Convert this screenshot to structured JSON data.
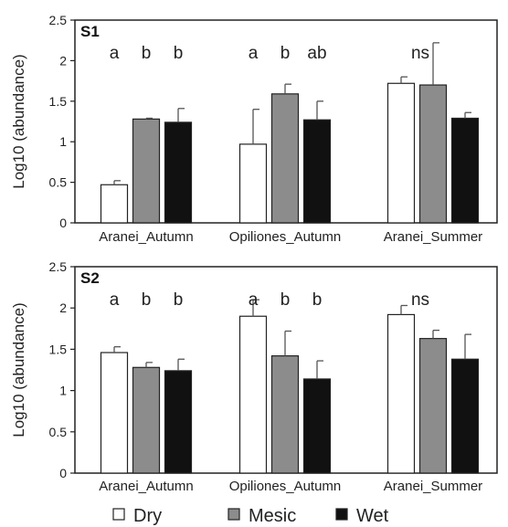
{
  "chart_data": [
    {
      "type": "bar",
      "panel_label": "S1",
      "ylabel": "Log10 (abundance)",
      "ylim": [
        0,
        2.5
      ],
      "yticks": [
        0,
        0.5,
        1,
        1.5,
        2,
        2.5
      ],
      "ytick_labels": [
        "0",
        "0.5",
        "1",
        "1.5",
        "2",
        "2.5"
      ],
      "categories": [
        "Aranei_Autumn",
        "Opiliones_Autumn",
        "Aranei_Summer"
      ],
      "series": [
        {
          "name": "Dry",
          "color": "#ffffff",
          "values": [
            0.47,
            0.97,
            1.72
          ],
          "errors": [
            0.05,
            0.43,
            0.08
          ]
        },
        {
          "name": "Mesic",
          "color": "#8c8c8c",
          "values": [
            1.28,
            1.59,
            1.7
          ],
          "errors": [
            0.01,
            0.12,
            0.52
          ]
        },
        {
          "name": "Wet",
          "color": "#111111",
          "values": [
            1.24,
            1.27,
            1.29
          ],
          "errors": [
            0.17,
            0.23,
            0.07
          ]
        }
      ],
      "significance": [
        [
          "a",
          "b",
          "b"
        ],
        [
          "a",
          "b",
          "ab"
        ],
        [
          "ns"
        ]
      ],
      "grid": false
    },
    {
      "type": "bar",
      "panel_label": "S2",
      "ylabel": "Log10 (abundance)",
      "ylim": [
        0,
        2.5
      ],
      "yticks": [
        0,
        0.5,
        1,
        1.5,
        2,
        2.5
      ],
      "ytick_labels": [
        "0",
        "0.5",
        "1",
        "1.5",
        "2",
        "2.5"
      ],
      "categories": [
        "Aranei_Autumn",
        "Opiliones_Autumn",
        "Aranei_Summer"
      ],
      "series": [
        {
          "name": "Dry",
          "color": "#ffffff",
          "values": [
            1.46,
            1.9,
            1.92
          ],
          "errors": [
            0.07,
            0.2,
            0.11
          ]
        },
        {
          "name": "Mesic",
          "color": "#8c8c8c",
          "values": [
            1.28,
            1.42,
            1.63
          ],
          "errors": [
            0.06,
            0.3,
            0.1
          ]
        },
        {
          "name": "Wet",
          "color": "#111111",
          "values": [
            1.24,
            1.14,
            1.38
          ],
          "errors": [
            0.14,
            0.22,
            0.3
          ]
        }
      ],
      "significance": [
        [
          "a",
          "b",
          "b"
        ],
        [
          "a",
          "b",
          "b"
        ],
        [
          "ns"
        ]
      ],
      "grid": false
    }
  ],
  "legend": {
    "placement": "bottom",
    "items": [
      {
        "label": "Dry",
        "color": "#ffffff"
      },
      {
        "label": "Mesic",
        "color": "#8c8c8c"
      },
      {
        "label": "Wet",
        "color": "#111111"
      }
    ]
  }
}
